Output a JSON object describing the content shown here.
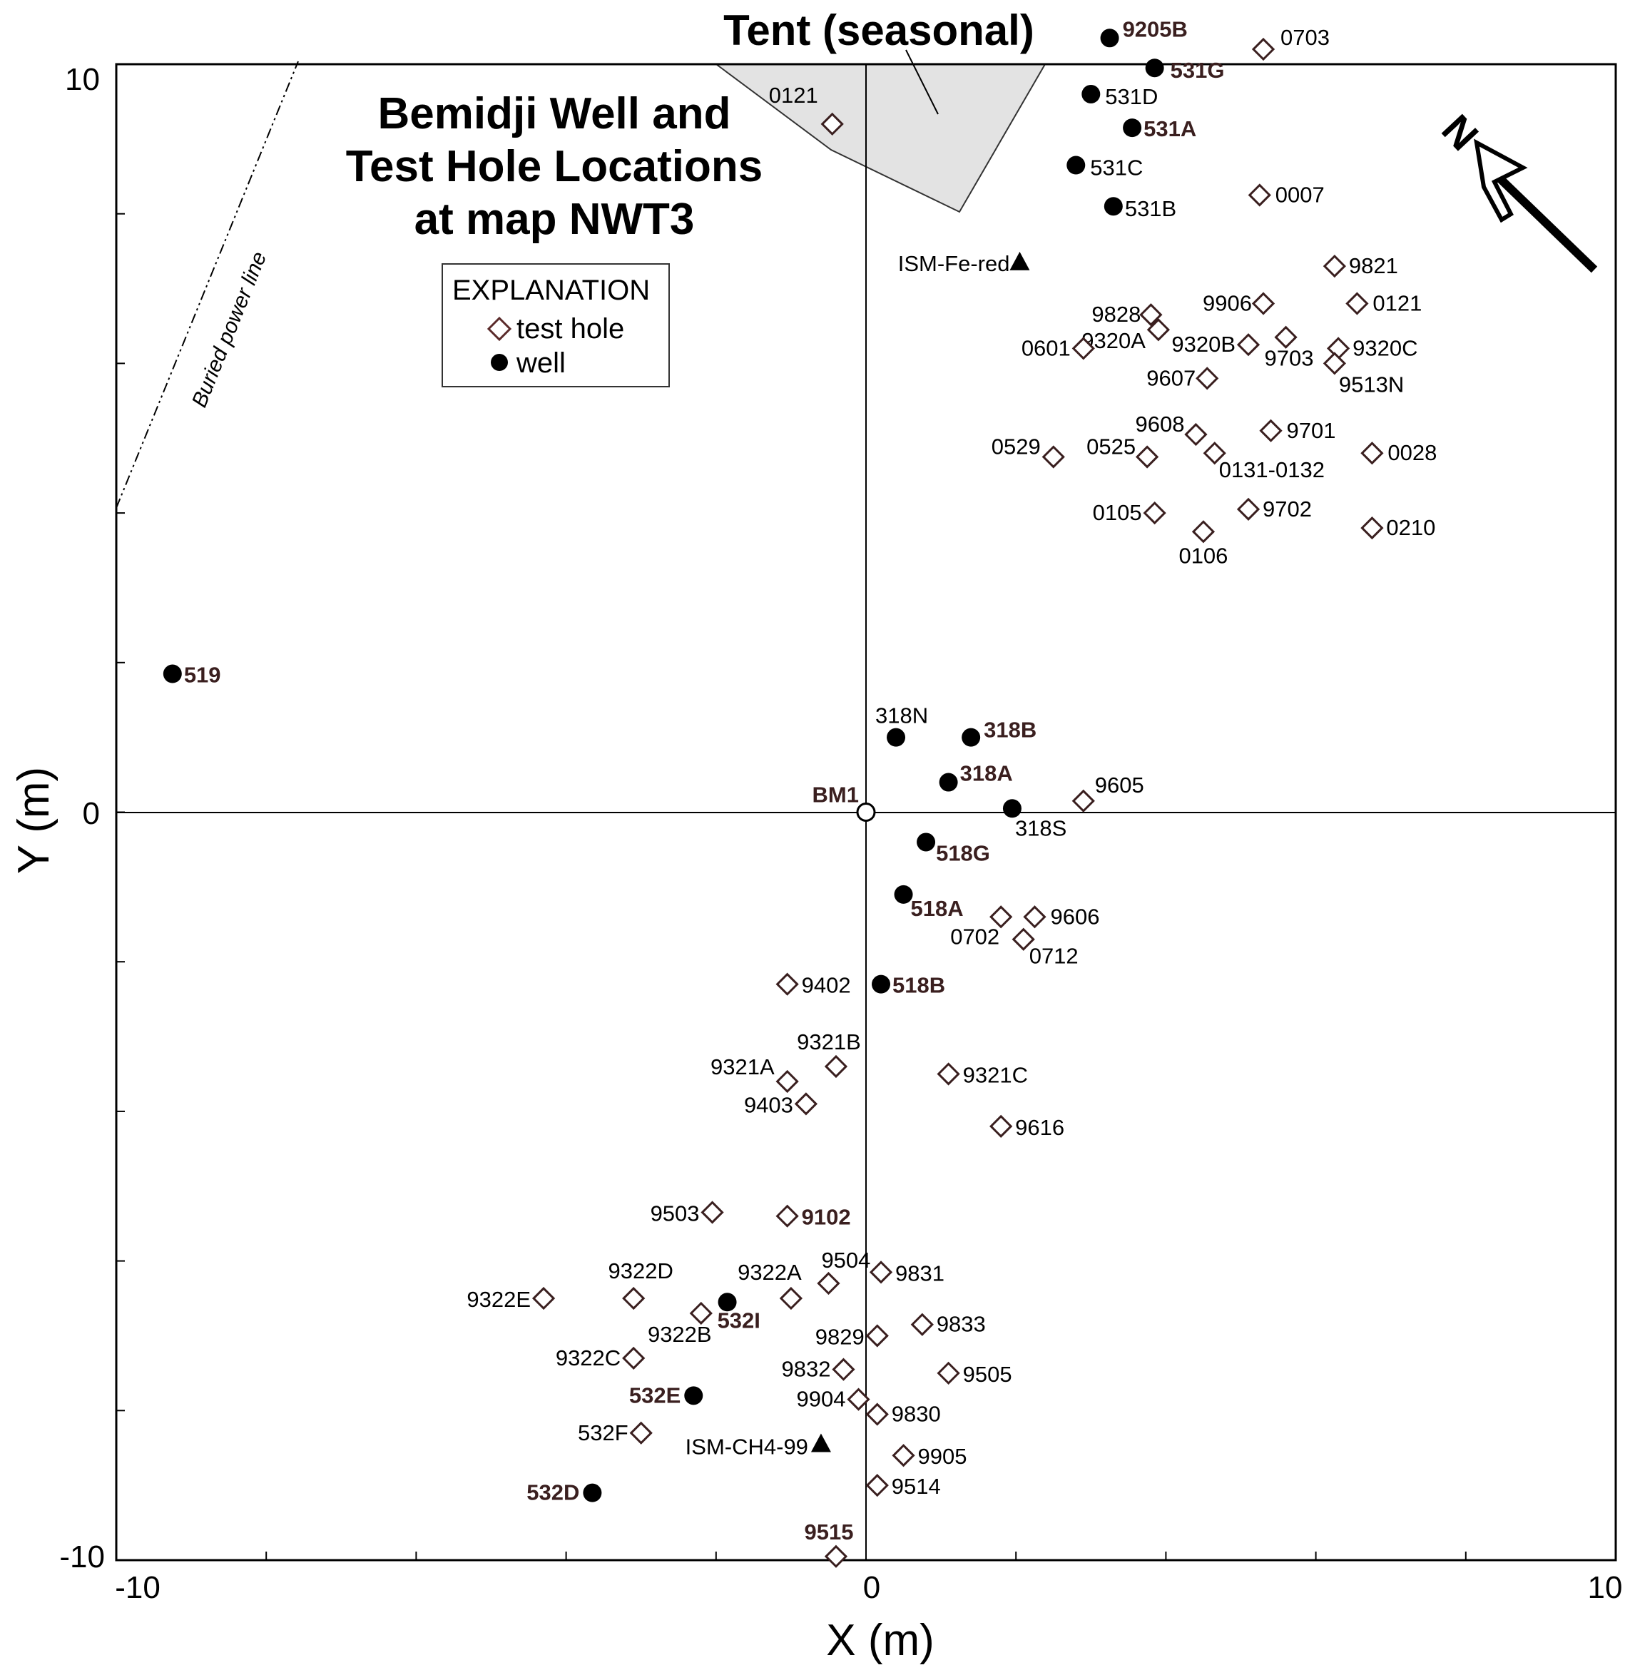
{
  "chart_data": {
    "type": "scatter",
    "title": "Bemidji Well and Test Hole Locations at map NWT3",
    "xlabel": "X (m)",
    "ylabel": "Y (m)",
    "xlim": [
      -10,
      10
    ],
    "ylim": [
      -10,
      10
    ],
    "x_tick_labels": [
      "-10",
      "0",
      "10"
    ],
    "y_tick_labels": [
      "-10",
      "0",
      "10"
    ],
    "grid": false,
    "legend": {
      "title": "EXPLANATION",
      "placement": "top-left",
      "entries": [
        {
          "label": "test hole",
          "marker": "diamond-open"
        },
        {
          "label": "well",
          "marker": "circle-filled"
        }
      ]
    },
    "annotations": {
      "tent": "Tent (seasonal)",
      "power_line": "Buried power line",
      "north": "N"
    },
    "series": [
      {
        "name": "test hole",
        "marker": "diamond-open",
        "points": [
          {
            "label": "0703",
            "x": 5.3,
            "y": 10.2
          },
          {
            "label": "0121",
            "x": -0.45,
            "y": 9.2
          },
          {
            "label": "0007",
            "x": 5.25,
            "y": 8.25
          },
          {
            "label": "9821",
            "x": 6.25,
            "y": 7.3
          },
          {
            "label": "9906",
            "x": 5.3,
            "y": 6.8
          },
          {
            "label": "0121",
            "x": 6.55,
            "y": 6.8
          },
          {
            "label": "9828",
            "x": 3.8,
            "y": 6.65
          },
          {
            "label": "9320A",
            "x": 3.9,
            "y": 6.45
          },
          {
            "label": "0601",
            "x": 2.9,
            "y": 6.2
          },
          {
            "label": "9320B",
            "x": 5.1,
            "y": 6.25
          },
          {
            "label": "9703",
            "x": 5.6,
            "y": 6.35
          },
          {
            "label": "9320C",
            "x": 6.3,
            "y": 6.2
          },
          {
            "label": "9513N",
            "x": 6.25,
            "y": 6.0
          },
          {
            "label": "9607",
            "x": 4.55,
            "y": 5.8
          },
          {
            "label": "9608",
            "x": 4.4,
            "y": 5.05
          },
          {
            "label": "9701",
            "x": 5.4,
            "y": 5.1
          },
          {
            "label": "0529",
            "x": 2.5,
            "y": 4.75
          },
          {
            "label": "0525",
            "x": 3.75,
            "y": 4.75
          },
          {
            "label": "0131-0132",
            "x": 4.65,
            "y": 4.8
          },
          {
            "label": "0028",
            "x": 6.75,
            "y": 4.8
          },
          {
            "label": "0105",
            "x": 3.85,
            "y": 4.0
          },
          {
            "label": "9702",
            "x": 5.1,
            "y": 4.05
          },
          {
            "label": "0106",
            "x": 4.5,
            "y": 3.75
          },
          {
            "label": "0210",
            "x": 6.75,
            "y": 3.8
          },
          {
            "label": "9605",
            "x": 2.9,
            "y": 0.15
          },
          {
            "label": "0702",
            "x": 1.8,
            "y": -1.4
          },
          {
            "label": "9606",
            "x": 2.25,
            "y": -1.4
          },
          {
            "label": "0712",
            "x": 2.1,
            "y": -1.7
          },
          {
            "label": "9402",
            "x": -1.05,
            "y": -2.3
          },
          {
            "label": "9321B",
            "x": -0.4,
            "y": -3.4
          },
          {
            "label": "9321A",
            "x": -1.05,
            "y": -3.6
          },
          {
            "label": "9321C",
            "x": 1.1,
            "y": -3.5
          },
          {
            "label": "9403",
            "x": -0.8,
            "y": -3.9
          },
          {
            "label": "9616",
            "x": 1.8,
            "y": -4.2
          },
          {
            "label": "9503",
            "x": -2.05,
            "y": -5.35
          },
          {
            "label": "9102",
            "x": -1.05,
            "y": -5.4
          },
          {
            "label": "9831",
            "x": 0.2,
            "y": -6.15
          },
          {
            "label": "9504",
            "x": -0.5,
            "y": -6.3
          },
          {
            "label": "9322E",
            "x": -4.3,
            "y": -6.5
          },
          {
            "label": "9322D",
            "x": -3.1,
            "y": -6.5
          },
          {
            "label": "9322A",
            "x": -1.0,
            "y": -6.5
          },
          {
            "label": "9322B",
            "x": -2.2,
            "y": -6.7
          },
          {
            "label": "9833",
            "x": 0.75,
            "y": -6.85
          },
          {
            "label": "9829",
            "x": 0.15,
            "y": -7.0
          },
          {
            "label": "9322C",
            "x": -3.1,
            "y": -7.3
          },
          {
            "label": "9832",
            "x": -0.3,
            "y": -7.45
          },
          {
            "label": "9505",
            "x": 1.1,
            "y": -7.5
          },
          {
            "label": "9904",
            "x": -0.1,
            "y": -7.85
          },
          {
            "label": "9830",
            "x": 0.15,
            "y": -8.05
          },
          {
            "label": "532F",
            "x": -3.0,
            "y": -8.3
          },
          {
            "label": "9905",
            "x": 0.5,
            "y": -8.6
          },
          {
            "label": "9514",
            "x": 0.15,
            "y": -9.0
          },
          {
            "label": "9515",
            "x": -0.4,
            "y": -9.95
          }
        ]
      },
      {
        "name": "well",
        "marker": "circle-filled",
        "points": [
          {
            "label": "9205B",
            "x": 3.25,
            "y": 10.35
          },
          {
            "label": "531G",
            "x": 3.85,
            "y": 9.95
          },
          {
            "label": "531D",
            "x": 3.0,
            "y": 9.6
          },
          {
            "label": "531A",
            "x": 3.55,
            "y": 9.15
          },
          {
            "label": "531C",
            "x": 2.8,
            "y": 8.65
          },
          {
            "label": "531B",
            "x": 3.3,
            "y": 8.1
          },
          {
            "label": "519",
            "x": -9.25,
            "y": 1.85
          },
          {
            "label": "318N",
            "x": 0.4,
            "y": 1.0
          },
          {
            "label": "318B",
            "x": 1.4,
            "y": 1.0
          },
          {
            "label": "318A",
            "x": 1.1,
            "y": 0.4
          },
          {
            "label": "318S",
            "x": 1.95,
            "y": 0.05
          },
          {
            "label": "518G",
            "x": 0.8,
            "y": -0.4
          },
          {
            "label": "518A",
            "x": 0.5,
            "y": -1.1
          },
          {
            "label": "518B",
            "x": 0.2,
            "y": -2.3
          },
          {
            "label": "532I",
            "x": -1.85,
            "y": -6.55
          },
          {
            "label": "532E",
            "x": -2.3,
            "y": -7.8
          },
          {
            "label": "532D",
            "x": -3.65,
            "y": -9.1
          }
        ]
      },
      {
        "name": "ISM",
        "marker": "triangle-filled",
        "points": [
          {
            "label": "ISM-Fe-red",
            "x": 2.05,
            "y": 7.35
          },
          {
            "label": "ISM-CH4-99",
            "x": -0.6,
            "y": -8.45
          }
        ]
      },
      {
        "name": "benchmark",
        "marker": "circle-open",
        "points": [
          {
            "label": "BM1",
            "x": 0.0,
            "y": 0.0
          }
        ]
      }
    ]
  }
}
